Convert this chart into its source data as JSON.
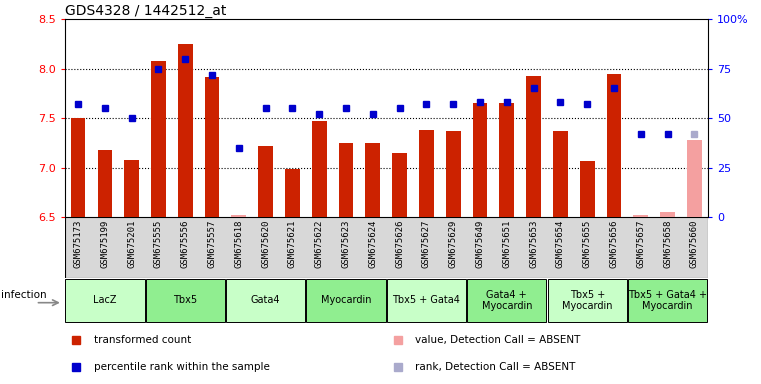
{
  "title": "GDS4328 / 1442512_at",
  "samples": [
    "GSM675173",
    "GSM675199",
    "GSM675201",
    "GSM675555",
    "GSM675556",
    "GSM675557",
    "GSM675618",
    "GSM675620",
    "GSM675621",
    "GSM675622",
    "GSM675623",
    "GSM675624",
    "GSM675626",
    "GSM675627",
    "GSM675629",
    "GSM675649",
    "GSM675651",
    "GSM675653",
    "GSM675654",
    "GSM675655",
    "GSM675656",
    "GSM675657",
    "GSM675658",
    "GSM675660"
  ],
  "bar_values": [
    7.5,
    7.18,
    7.08,
    8.08,
    8.25,
    7.92,
    6.52,
    7.22,
    6.98,
    7.47,
    7.25,
    7.25,
    7.15,
    7.38,
    7.37,
    7.65,
    7.65,
    7.93,
    7.37,
    7.07,
    7.95,
    6.52,
    6.55,
    7.28
  ],
  "rank_percentiles": [
    57,
    55,
    50,
    75,
    80,
    72,
    35,
    55,
    55,
    52,
    55,
    52,
    55,
    57,
    57,
    58,
    58,
    65,
    58,
    57,
    65,
    42,
    42,
    42
  ],
  "absent_bar": [
    false,
    false,
    false,
    false,
    false,
    false,
    true,
    false,
    false,
    false,
    false,
    false,
    false,
    false,
    false,
    false,
    false,
    false,
    false,
    false,
    false,
    true,
    true,
    true
  ],
  "absent_rank": [
    false,
    false,
    false,
    false,
    false,
    false,
    false,
    false,
    false,
    false,
    false,
    false,
    false,
    false,
    false,
    false,
    false,
    false,
    false,
    false,
    false,
    false,
    false,
    true
  ],
  "groups": [
    {
      "label": "LacZ",
      "start": 0,
      "end": 2,
      "color": "#c8ffc8"
    },
    {
      "label": "Tbx5",
      "start": 3,
      "end": 5,
      "color": "#90ee90"
    },
    {
      "label": "Gata4",
      "start": 6,
      "end": 8,
      "color": "#c8ffc8"
    },
    {
      "label": "Myocardin",
      "start": 9,
      "end": 11,
      "color": "#90ee90"
    },
    {
      "label": "Tbx5 + Gata4",
      "start": 12,
      "end": 14,
      "color": "#c8ffc8"
    },
    {
      "label": "Gata4 +\nMyocardin",
      "start": 15,
      "end": 17,
      "color": "#90ee90"
    },
    {
      "label": "Tbx5 +\nMyocardin",
      "start": 18,
      "end": 20,
      "color": "#c8ffc8"
    },
    {
      "label": "Tbx5 + Gata4 +\nMyocardin",
      "start": 21,
      "end": 23,
      "color": "#90ee90"
    }
  ],
  "ylim": [
    6.5,
    8.5
  ],
  "yticks_left": [
    6.5,
    7.0,
    7.5,
    8.0,
    8.5
  ],
  "yticks_right": [
    0,
    25,
    50,
    75,
    100
  ],
  "bar_color": "#cc2200",
  "bar_absent_color": "#f4a0a0",
  "rank_color": "#0000cc",
  "rank_absent_color": "#aaaacc",
  "bar_baseline": 6.5,
  "legend_items": [
    {
      "color": "#cc2200",
      "label": "transformed count"
    },
    {
      "color": "#0000cc",
      "label": "percentile rank within the sample"
    },
    {
      "color": "#f4a0a0",
      "label": "value, Detection Call = ABSENT"
    },
    {
      "color": "#aaaacc",
      "label": "rank, Detection Call = ABSENT"
    }
  ]
}
